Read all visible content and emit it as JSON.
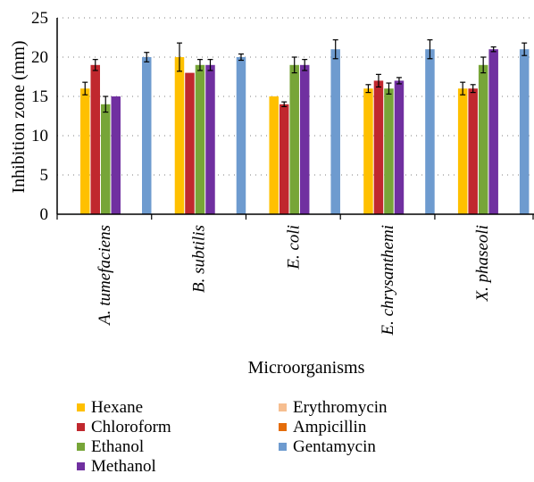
{
  "chart_data": {
    "type": "bar",
    "title": "",
    "xlabel": "Microorganisms",
    "ylabel": "Inhibition zone (mm)",
    "ylim": [
      0,
      25
    ],
    "yticks": [
      0,
      5,
      10,
      15,
      20,
      25
    ],
    "grid": "horizontal dotted",
    "legend_position": "bottom",
    "categories": [
      "A. tumefaciens",
      "B. subtilis",
      "E. coli",
      "E. chrysanthemi",
      "X. phaseoli"
    ],
    "series": [
      {
        "name": "Hexane",
        "color": "#FFC000",
        "values": [
          16,
          20,
          15,
          16,
          16
        ],
        "errors": [
          0.8,
          1.8,
          0,
          0.5,
          0.8
        ]
      },
      {
        "name": "Chloroform",
        "color": "#C0282E",
        "values": [
          19,
          18,
          14,
          17,
          16
        ],
        "errors": [
          0.7,
          0,
          0.3,
          0.8,
          0.5
        ]
      },
      {
        "name": "Ethanol",
        "color": "#77A538",
        "values": [
          14,
          19,
          19,
          16,
          19
        ],
        "errors": [
          1,
          0.7,
          1,
          0.7,
          1
        ]
      },
      {
        "name": "Methanol",
        "color": "#7030A0",
        "values": [
          15,
          19,
          19,
          17,
          21
        ],
        "errors": [
          0,
          0.7,
          0.7,
          0.4,
          0.3
        ]
      },
      {
        "name": "Erythromycin",
        "color": "#F6BE90",
        "values": [
          0,
          0,
          0,
          0,
          0
        ],
        "errors": [
          0,
          0,
          0,
          0,
          0
        ]
      },
      {
        "name": "Ampicillin",
        "color": "#E46C0A",
        "values": [
          0,
          0,
          0,
          0,
          0
        ],
        "errors": [
          0,
          0,
          0,
          0,
          0
        ]
      },
      {
        "name": "Gentamycin",
        "color": "#6E9BCF",
        "values": [
          20,
          20,
          21,
          21,
          21
        ],
        "errors": [
          0.6,
          0.4,
          1.2,
          1.2,
          0.8
        ]
      }
    ]
  }
}
